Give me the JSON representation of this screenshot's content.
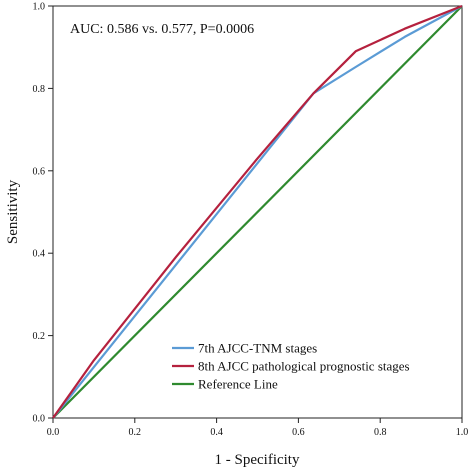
{
  "chart_data": {
    "type": "line",
    "title": "",
    "xlabel": "1 - Specificity",
    "ylabel": "Sensitivity",
    "xlim": [
      0,
      1
    ],
    "ylim": [
      0,
      1
    ],
    "xticks": [
      "0.0",
      "0.2",
      "0.4",
      "0.6",
      "0.8",
      "1.0"
    ],
    "yticks": [
      "0.0",
      "0.2",
      "0.4",
      "0.6",
      "0.8",
      "1.0"
    ],
    "grid": false,
    "legend_position": "bottom-right",
    "annotation": "AUC: 0.586 vs. 0.577, P=0.0006",
    "series": [
      {
        "name": "7th AJCC-TNM stages",
        "color": "#5b9bd5",
        "points": [
          [
            0,
            0
          ],
          [
            0.637,
            0.788
          ],
          [
            0.74,
            0.852
          ],
          [
            0.86,
            0.925
          ],
          [
            1,
            1
          ]
        ]
      },
      {
        "name": "8th AJCC pathological prognostic stages",
        "color": "#b5213e",
        "points": [
          [
            0,
            0
          ],
          [
            0.1,
            0.14
          ],
          [
            0.3,
            0.39
          ],
          [
            0.5,
            0.63
          ],
          [
            0.637,
            0.788
          ],
          [
            0.74,
            0.89
          ],
          [
            0.86,
            0.945
          ],
          [
            1,
            1
          ]
        ]
      },
      {
        "name": "Reference Line",
        "color": "#2f8a2f",
        "points": [
          [
            0,
            0
          ],
          [
            1,
            1
          ]
        ]
      }
    ]
  }
}
